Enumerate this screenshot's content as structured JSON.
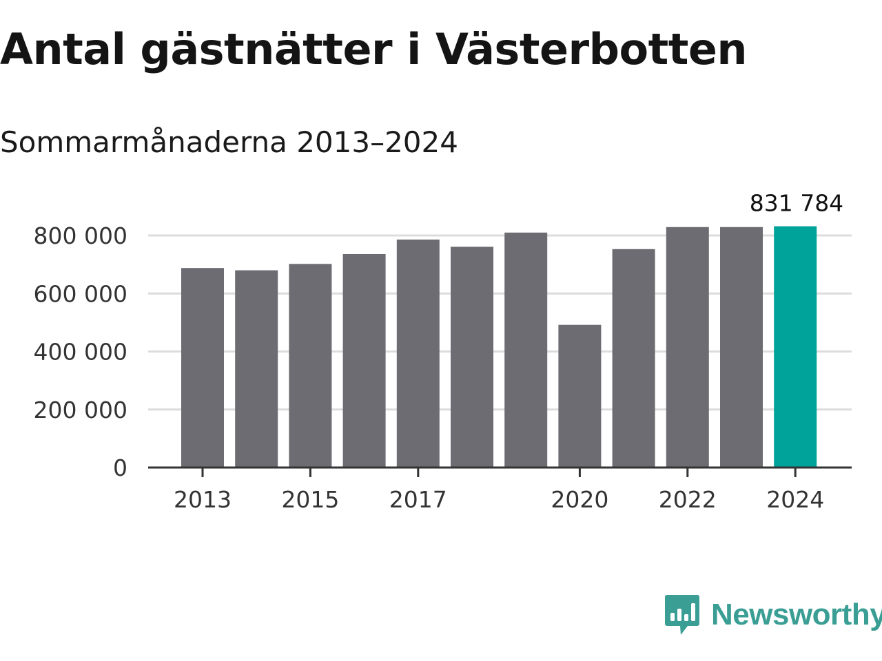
{
  "title": "Antal gästnätter i Västerbotten",
  "subtitle": "Sommarmånaderna 2013–2024",
  "logo": {
    "name": "Newsworthy",
    "icon": "bar-chart-speech-bubble-icon",
    "color": "#3a9e94"
  },
  "colors": {
    "bar": "#6d6c72",
    "highlight": "#00a39a",
    "grid": "#dcdcdc",
    "axis": "#333333"
  },
  "chart_data": {
    "type": "bar",
    "title": "Antal gästnätter i Västerbotten",
    "subtitle": "Sommarmånaderna 2013–2024",
    "xlabel": "",
    "ylabel": "",
    "categories": [
      "2013",
      "2014",
      "2015",
      "2016",
      "2017",
      "2018",
      "2019",
      "2020",
      "2021",
      "2022",
      "2023",
      "2024"
    ],
    "values": [
      688000,
      680000,
      702000,
      736000,
      786000,
      761000,
      810000,
      492000,
      753000,
      829000,
      829000,
      831784
    ],
    "x_tick_labels": [
      "2013",
      "2015",
      "2017",
      "2020",
      "2022",
      "2024"
    ],
    "y_ticks": [
      {
        "value": 0,
        "label": "0"
      },
      {
        "value": 200000,
        "label": "200 000"
      },
      {
        "value": 400000,
        "label": "400 000"
      },
      {
        "value": 600000,
        "label": "600 000"
      },
      {
        "value": 800000,
        "label": "800 000"
      }
    ],
    "ylim": [
      0,
      800000
    ],
    "grid": true,
    "highlight": {
      "category": "2024",
      "label": "831 784"
    }
  }
}
